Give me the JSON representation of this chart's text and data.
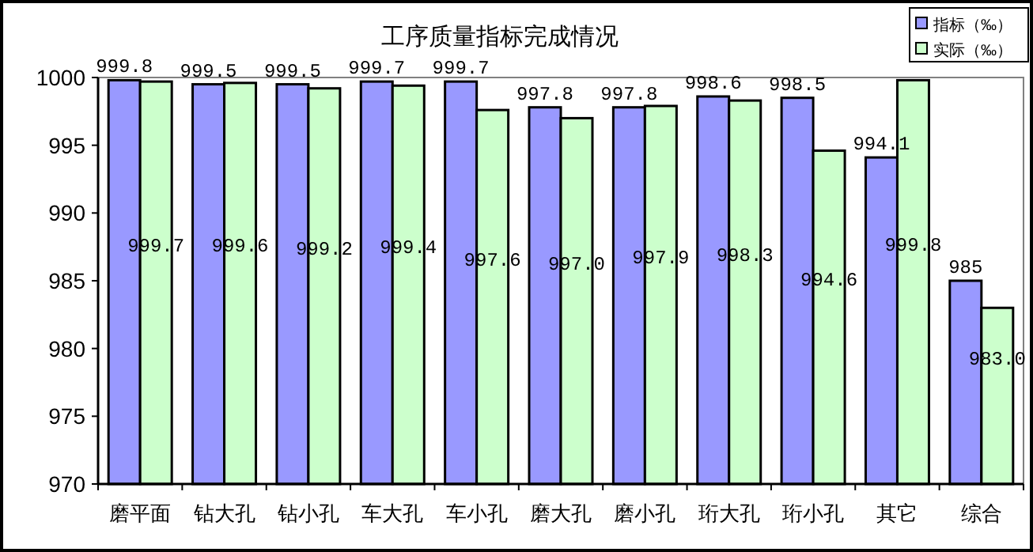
{
  "chart_data": {
    "type": "bar",
    "title": "工序质量指标完成情况",
    "categories": [
      "磨平面",
      "钻大孔",
      "钻小孔",
      "车大孔",
      "车小孔",
      "磨大孔",
      "磨小孔",
      "珩大孔",
      "珩小孔",
      "其它",
      "综合"
    ],
    "series": [
      {
        "name": "指标（‰）",
        "color": "#9999ff",
        "values": [
          999.8,
          999.5,
          999.5,
          999.7,
          999.7,
          997.8,
          997.8,
          998.6,
          998.5,
          994.1,
          985
        ],
        "value_labels": [
          "999.8",
          "999.5",
          "999.5",
          "999.7",
          "999.7",
          "997.8",
          "997.8",
          "998.6",
          "998.5",
          "994.1",
          "985"
        ]
      },
      {
        "name": "实际（‰）",
        "color": "#ccffcc",
        "values": [
          999.7,
          999.6,
          999.2,
          999.4,
          997.6,
          997.0,
          997.9,
          998.3,
          994.6,
          999.8,
          983.0
        ],
        "value_labels": [
          "999.7",
          "999.6",
          "999.2",
          "999.4",
          "997.6",
          "997.0",
          "997.9",
          "998.3",
          "994.6",
          "999.8",
          "983.0"
        ]
      }
    ],
    "ylim": [
      970,
      1000
    ],
    "yticks": [
      970,
      975,
      980,
      985,
      990,
      995,
      1000
    ],
    "grid": false,
    "legend": "top right"
  }
}
